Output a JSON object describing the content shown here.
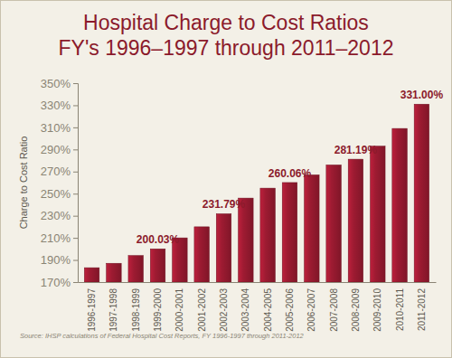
{
  "chart_data": {
    "type": "bar",
    "title": "Hospital Charge to Cost Ratios",
    "subtitle": "FY's 1996–1997 through 2011–2012",
    "y_label": "Charge to Cost Ratio",
    "source": "Source: IHSP calculations of Federal Hospital Cost Reports, FY 1996-1997 through 2011-2012",
    "categories": [
      "1996-1997",
      "1997-1998",
      "1998-1999",
      "1999-2000",
      "2000-2001",
      "2001-2002",
      "2002-2003",
      "2003-2004",
      "2004-2005",
      "2005-2006",
      "2006-2007",
      "2007-2008",
      "2008-2009",
      "2009-2010",
      "2010-2011",
      "2011-2012"
    ],
    "values": [
      183,
      187,
      194,
      200.03,
      210,
      220,
      231.79,
      246,
      255,
      260.06,
      267,
      276,
      281.19,
      293,
      309,
      331.0
    ],
    "value_labels": [
      null,
      null,
      null,
      "200.03%",
      null,
      null,
      "231.79%",
      null,
      null,
      "260.06%",
      null,
      null,
      "281.19%",
      null,
      null,
      "331.00%"
    ],
    "data_labels": true,
    "color": "#9e1b32",
    "ylim": [
      170,
      350
    ],
    "yticks": [
      {
        "value": 170,
        "label": "170%"
      },
      {
        "value": 190,
        "label": "190%"
      },
      {
        "value": 210,
        "label": "210%"
      },
      {
        "value": 230,
        "label": "230%"
      },
      {
        "value": 250,
        "label": "250%"
      },
      {
        "value": 270,
        "label": "270%"
      },
      {
        "value": 290,
        "label": "290%"
      },
      {
        "value": 310,
        "label": "310%"
      },
      {
        "value": 330,
        "label": "330%"
      },
      {
        "value": 350,
        "label": "350%"
      }
    ],
    "grid": false
  }
}
